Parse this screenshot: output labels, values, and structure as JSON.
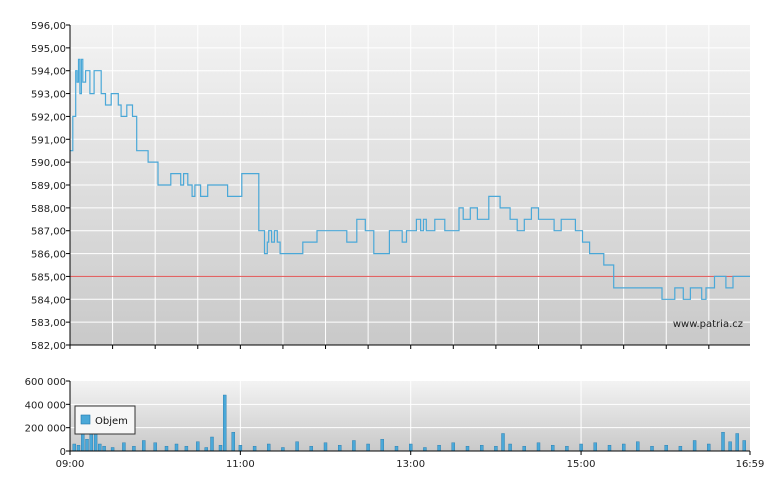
{
  "chart_data": [
    {
      "type": "line",
      "panel": "price",
      "ylim": [
        582,
        596
      ],
      "y_ticks": [
        "596,00",
        "595,00",
        "594,00",
        "593,00",
        "592,00",
        "591,00",
        "590,00",
        "589,00",
        "588,00",
        "587,00",
        "586,00",
        "585,00",
        "584,00",
        "583,00",
        "582,00"
      ],
      "x_range": [
        "09:00",
        "16:59"
      ],
      "reference_line": 585.0,
      "series": [
        {
          "x": [
            "09:00",
            "09:02",
            "09:04",
            "09:05",
            "09:06",
            "09:07",
            "09:08",
            "09:09",
            "09:11",
            "09:14",
            "09:17",
            "09:22",
            "09:25",
            "09:29",
            "09:34",
            "09:36",
            "09:40",
            "09:44",
            "09:47",
            "09:52",
            "09:55",
            "10:02",
            "10:11",
            "10:18",
            "10:20",
            "10:23",
            "10:26",
            "10:28",
            "10:32",
            "10:37",
            "10:51",
            "11:01",
            "11:13",
            "11:17",
            "11:19",
            "11:20",
            "11:22",
            "11:24",
            "11:26",
            "11:28",
            "11:30",
            "11:34",
            "11:44",
            "11:54",
            "12:15",
            "12:22",
            "12:28",
            "12:34",
            "12:45",
            "12:54",
            "12:57",
            "13:04",
            "13:07",
            "13:09",
            "13:11",
            "13:14",
            "13:17",
            "13:21",
            "13:24",
            "13:34",
            "13:37",
            "13:42",
            "13:47",
            "13:55",
            "14:03",
            "14:10",
            "14:15",
            "14:20",
            "14:25",
            "14:30",
            "14:35",
            "14:41",
            "14:46",
            "14:56",
            "15:01",
            "15:06",
            "15:12",
            "15:16",
            "15:23",
            "15:43",
            "15:53",
            "15:57",
            "16:06",
            "16:12",
            "16:17",
            "16:25",
            "16:28",
            "16:34",
            "16:42",
            "16:47",
            "16:52",
            "16:59"
          ],
          "y": [
            590.5,
            592.0,
            594.0,
            593.5,
            594.5,
            593.0,
            594.5,
            593.5,
            594.0,
            593.0,
            594.0,
            593.0,
            592.5,
            593.0,
            592.5,
            592.0,
            592.5,
            592.0,
            590.5,
            590.5,
            590.0,
            589.0,
            589.5,
            589.0,
            589.5,
            589.0,
            588.5,
            589.0,
            588.5,
            589.0,
            588.5,
            589.5,
            587.0,
            586.0,
            586.5,
            587.0,
            586.5,
            587.0,
            586.5,
            586.0,
            586.0,
            586.0,
            586.5,
            587.0,
            586.5,
            587.5,
            587.0,
            586.0,
            587.0,
            586.5,
            587.0,
            587.5,
            587.0,
            587.5,
            587.0,
            587.0,
            587.5,
            587.5,
            587.0,
            588.0,
            587.5,
            588.0,
            587.5,
            588.5,
            588.0,
            587.5,
            587.0,
            587.5,
            588.0,
            587.5,
            587.5,
            587.0,
            587.5,
            587.0,
            586.5,
            586.0,
            586.0,
            585.5,
            584.5,
            584.5,
            584.5,
            584.0,
            584.5,
            584.0,
            584.5,
            584.0,
            584.5,
            585.0,
            584.5,
            585.0,
            585.0,
            585.0
          ]
        }
      ]
    },
    {
      "type": "bar",
      "panel": "volume",
      "ylim": [
        0,
        600000
      ],
      "y_ticks": [
        "600 000",
        "400 000",
        "200 000",
        "0"
      ],
      "x_ticks": [
        "09:00",
        "11:00",
        "13:00",
        "15:00",
        "16:59"
      ],
      "legend": "Objem",
      "x": [
        "09:03",
        "09:06",
        "09:09",
        "09:12",
        "09:15",
        "09:18",
        "09:21",
        "09:24",
        "09:30",
        "09:38",
        "09:45",
        "09:52",
        "10:00",
        "10:08",
        "10:15",
        "10:22",
        "10:30",
        "10:36",
        "10:40",
        "10:46",
        "10:49",
        "10:55",
        "11:00",
        "11:10",
        "11:20",
        "11:30",
        "11:40",
        "11:50",
        "12:00",
        "12:10",
        "12:20",
        "12:30",
        "12:40",
        "12:50",
        "13:00",
        "13:10",
        "13:20",
        "13:30",
        "13:40",
        "13:50",
        "14:00",
        "14:05",
        "14:10",
        "14:20",
        "14:30",
        "14:40",
        "14:50",
        "15:00",
        "15:10",
        "15:20",
        "15:30",
        "15:40",
        "15:50",
        "16:00",
        "16:10",
        "16:20",
        "16:30",
        "16:40",
        "16:45",
        "16:50",
        "16:55"
      ],
      "values": [
        60000,
        50000,
        210000,
        100000,
        200000,
        180000,
        60000,
        40000,
        30000,
        70000,
        40000,
        90000,
        70000,
        40000,
        60000,
        40000,
        80000,
        30000,
        120000,
        50000,
        480000,
        160000,
        50000,
        40000,
        60000,
        30000,
        80000,
        40000,
        70000,
        50000,
        90000,
        60000,
        100000,
        40000,
        60000,
        30000,
        50000,
        70000,
        40000,
        50000,
        40000,
        150000,
        60000,
        40000,
        70000,
        50000,
        40000,
        60000,
        70000,
        50000,
        60000,
        80000,
        40000,
        50000,
        40000,
        90000,
        60000,
        160000,
        80000,
        150000,
        90000
      ]
    }
  ],
  "watermark": "www.patria.cz",
  "colors": {
    "line": "#4aa8d8",
    "reference": "#e05050",
    "bar_fill": "#4aa8d8",
    "bar_stroke": "#2277aa",
    "plot_top": "#f3f3f3",
    "plot_bottom": "#c9c9c9",
    "grid": "#ffffff",
    "axis": "#000000"
  }
}
